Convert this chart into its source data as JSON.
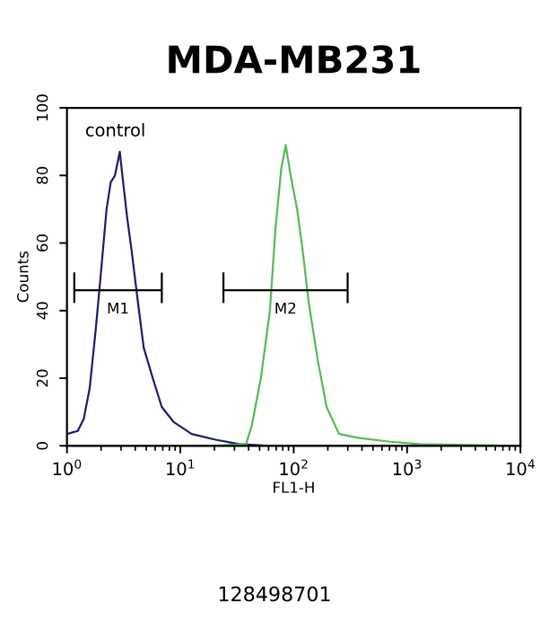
{
  "chart_data": {
    "type": "line",
    "title": "MDA-MB231",
    "xlabel": "FL1-H",
    "ylabel": "Counts",
    "log": "x",
    "xlim": [
      1,
      10000
    ],
    "xticks": [
      {
        "value": 1,
        "label": "10$^{0}$"
      },
      {
        "value": 10,
        "label": "10$^{1}$"
      },
      {
        "value": 100,
        "label": "10$^{2}$"
      },
      {
        "value": 1000,
        "label": "10$^{3}$"
      },
      {
        "value": 10000,
        "label": "10$^{4}$"
      }
    ],
    "ylim": [
      0,
      100
    ],
    "yticks": [
      0,
      20,
      40,
      60,
      80,
      100
    ],
    "grid": false,
    "marker": "none",
    "line_style": "solid",
    "series": [
      {
        "color": "#1c1c70",
        "x": [
          1,
          1.245,
          1.406,
          1.585,
          1.795,
          2.028,
          2.234,
          2.432,
          2.649,
          2.924,
          3.105,
          3.381,
          3.724,
          4.207,
          4.753,
          5.715,
          6.855,
          8.75,
          12.59,
          20.42,
          33.11,
          61.66,
          10000
        ],
        "values": [
          3.5,
          4.4,
          8,
          17,
          34.5,
          54,
          70,
          78,
          80,
          87,
          79,
          68,
          57.5,
          43,
          29,
          20,
          11.5,
          7,
          3.5,
          1.8,
          0.5,
          0,
          0
        ]
      },
      {
        "color": "#55bb55",
        "x": [
          1,
          18.2,
          38.02,
          42.66,
          51.29,
          61.66,
          69.18,
          77.62,
          85.11,
          93.33,
          107.2,
          120.2,
          134.9,
          162.2,
          195,
          251.2,
          380.2,
          707.9,
          1288,
          10000
        ],
        "values": [
          0,
          0,
          0.5,
          6,
          20,
          40,
          64.6,
          82,
          89,
          80.5,
          70,
          57.5,
          43,
          25.7,
          11.5,
          3.5,
          2.3,
          1.2,
          0.5,
          0
        ]
      },
      {
        "name": "M1",
        "color": "#000000",
        "x": [
          1.16,
          1.16,
          1.16,
          6.86,
          6.86,
          6.86
        ],
        "values": [
          51,
          42.5,
          46,
          46,
          51,
          42.5
        ]
      },
      {
        "name": "M2",
        "color": "#000000",
        "x": [
          24.0,
          24.0,
          24.0,
          299,
          299,
          299
        ],
        "values": [
          51,
          42.5,
          46,
          46,
          51,
          42.5
        ]
      }
    ],
    "annotations": [
      "control",
      "128498701"
    ]
  }
}
